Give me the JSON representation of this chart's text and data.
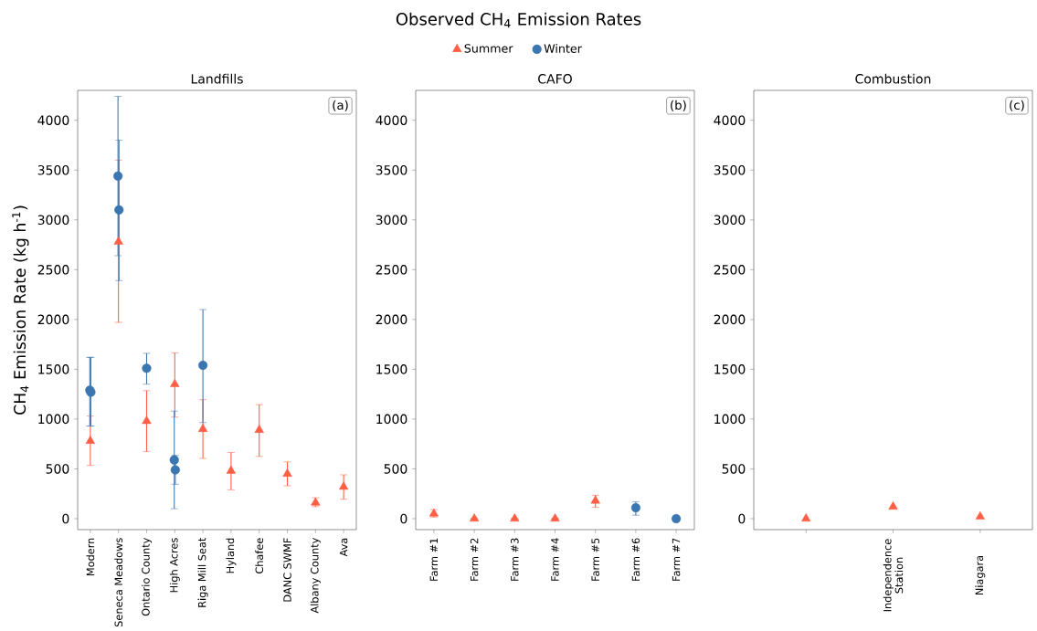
{
  "chart_data": [
    {
      "type": "scatter",
      "title": "Landfills",
      "ylabel": "CH$_{4}$ Emission Rate (kg h$^{-1}$)",
      "legend": "top",
      "ylim": [
        -110,
        4300
      ],
      "yticks": [
        0,
        500,
        1000,
        1500,
        2000,
        2500,
        3000,
        3500,
        4000
      ],
      "annotations": [
        "(a)",
        "Observed CH$_{4}$ Emission Rates"
      ],
      "categories": [
        "Modern",
        "Seneca Meadows",
        "Ontario County",
        "High Acres",
        "Riga Mill Seat",
        "Hyland",
        "Chafee",
        "DANC SWMF",
        "Albany County",
        "Ava"
      ],
      "series": [
        {
          "name": "Summer",
          "color": "#ff5e45",
          "marker": "triangle",
          "values": [
            780,
            2780,
            980,
            1350,
            900,
            480,
            890,
            450,
            160,
            320
          ],
          "errors": [
            [
              535,
              1030
            ],
            [
              1970,
              3600
            ],
            [
              675,
              1285
            ],
            [
              1020,
              1665
            ],
            [
              605,
              1195
            ],
            [
              290,
              665
            ],
            [
              625,
              1145
            ],
            [
              330,
              570
            ],
            [
              120,
              210
            ],
            [
              195,
              440
            ]
          ]
        },
        {
          "name": "Winter",
          "color": "#3a76af",
          "marker": "circle",
          "values": [
            1290,
            3440,
            1510,
            590,
            1540,
            null,
            null,
            null,
            null,
            null
          ],
          "errors": [
            [
              930,
              1620
            ],
            [
              2640,
              4240
            ],
            [
              1350,
              1660
            ],
            [
              100,
              1080
            ],
            [
              965,
              2100
            ],
            null,
            null,
            null,
            null,
            null
          ]
        },
        {
          "color": "#3a76af",
          "marker": "circle",
          "values": [
            1270,
            3100,
            null,
            490,
            null,
            null,
            null,
            null,
            null,
            null
          ],
          "errors": [
            [
              930,
              1620
            ],
            [
              2390,
              3800
            ],
            null,
            [
              345,
              635
            ],
            null,
            null,
            null,
            null,
            null,
            null
          ]
        }
      ]
    },
    {
      "type": "scatter",
      "title": "CAFO",
      "ylim": [
        -110,
        4300
      ],
      "yticks": [
        0,
        500,
        1000,
        1500,
        2000,
        2500,
        3000,
        3500,
        4000
      ],
      "annotations": [
        "(b)"
      ],
      "categories": [
        "Farm #1",
        "Farm #2",
        "Farm #3",
        "Farm #4",
        "Farm #5",
        "Farm #6",
        "Farm #7"
      ],
      "series": [
        {
          "color": "#ff5e45",
          "marker": "triangle",
          "values": [
            50,
            0,
            0,
            0,
            180,
            null,
            null
          ],
          "errors": [
            [
              15,
              90
            ],
            null,
            null,
            null,
            [
              115,
              235
            ],
            null,
            null
          ]
        },
        {
          "color": "#3a76af",
          "marker": "circle",
          "values": [
            null,
            null,
            null,
            null,
            null,
            110,
            0
          ],
          "errors": [
            null,
            null,
            null,
            null,
            null,
            [
              35,
              170
            ],
            null
          ]
        }
      ]
    },
    {
      "type": "scatter",
      "title": "Combustion",
      "ylim": [
        -110,
        4300
      ],
      "yticks": [
        0,
        500,
        1000,
        1500,
        2000,
        2500,
        3000,
        3500,
        4000
      ],
      "annotations": [
        "(c)"
      ],
      "categories": [
        null,
        "Independence Station",
        "Niagara"
      ],
      "series": [
        {
          "color": "#ff5e45",
          "marker": "triangle",
          "values": [
            0,
            120,
            20
          ]
        }
      ]
    }
  ]
}
